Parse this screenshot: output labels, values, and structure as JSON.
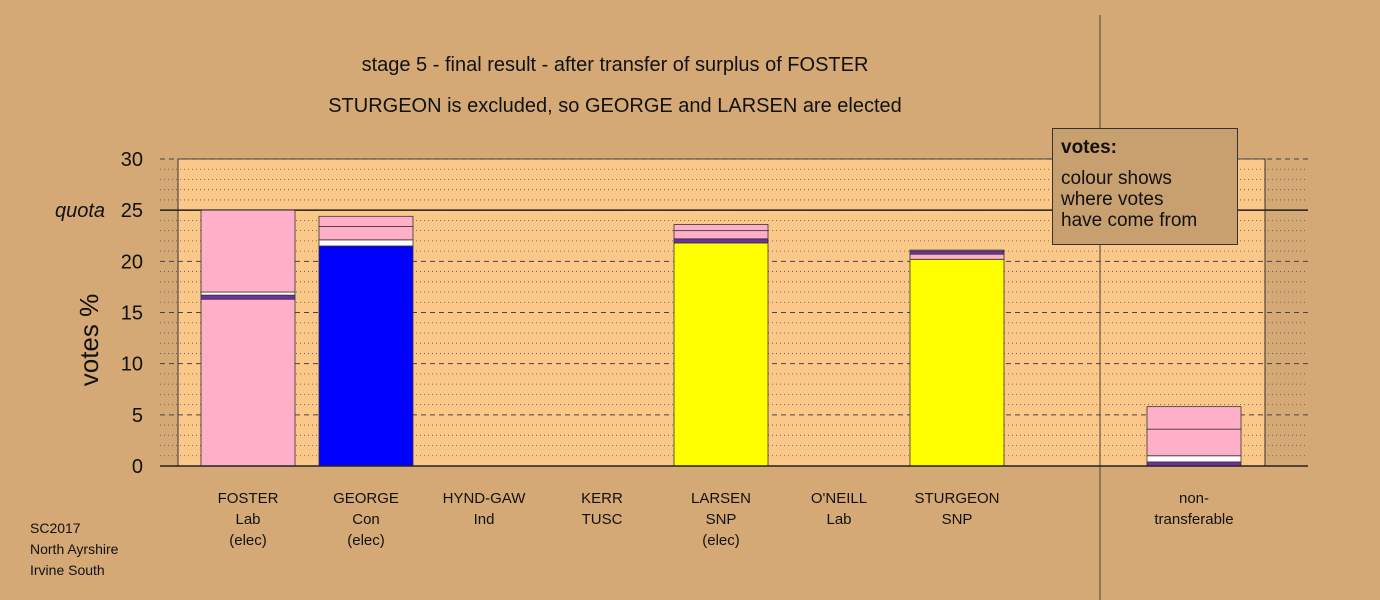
{
  "titles": {
    "line1": "stage 5 - final result - after transfer of surplus of FOSTER",
    "line2": "STURGEON is excluded, so GEORGE and LARSEN are elected"
  },
  "footer": [
    "SC2017",
    "North Ayrshire",
    "Irvine South"
  ],
  "legend": {
    "heading": "votes:",
    "lines": [
      "colour shows",
      "where votes",
      "have come from"
    ]
  },
  "colors": {
    "background": "#d4a976",
    "plot_area": "#fcc88a",
    "Lab": "#ffb0c8",
    "Con": "#0000ff",
    "SNP": "#ffff00",
    "Ind": "#7030a0",
    "TUSC": "#ffffff"
  },
  "chart_data": {
    "type": "bar",
    "stacked": true,
    "ylabel": "votes %",
    "ylim": [
      0,
      30
    ],
    "yticks": [
      0,
      5,
      10,
      15,
      20,
      25,
      30
    ],
    "quota": {
      "label": "quota",
      "value": 25
    },
    "categories": [
      {
        "name": "FOSTER",
        "party": "Lab",
        "status": "(elec)"
      },
      {
        "name": "GEORGE",
        "party": "Con",
        "status": "(elec)"
      },
      {
        "name": "HYND-GAW",
        "party": "Ind",
        "status": ""
      },
      {
        "name": "KERR",
        "party": "TUSC",
        "status": ""
      },
      {
        "name": "LARSEN",
        "party": "SNP",
        "status": "(elec)"
      },
      {
        "name": "O'NEILL",
        "party": "Lab",
        "status": ""
      },
      {
        "name": "STURGEON",
        "party": "SNP",
        "status": ""
      },
      {
        "name": "non-",
        "party": "transferable",
        "status": ""
      }
    ],
    "stacks": [
      [
        {
          "source": "Lab",
          "value": 16.3
        },
        {
          "source": "Ind",
          "value": 0.4
        },
        {
          "source": "TUSC",
          "value": 0.3
        },
        {
          "source": "Lab",
          "value": 8.0
        }
      ],
      [
        {
          "source": "Con",
          "value": 21.5
        },
        {
          "source": "TUSC",
          "value": 0.6
        },
        {
          "source": "Lab",
          "value": 1.3
        },
        {
          "source": "Lab",
          "value": 1.0
        }
      ],
      [],
      [],
      [
        {
          "source": "SNP",
          "value": 21.8
        },
        {
          "source": "Ind",
          "value": 0.4
        },
        {
          "source": "Lab",
          "value": 0.8
        },
        {
          "source": "Lab",
          "value": 0.6
        }
      ],
      [],
      [
        {
          "source": "SNP",
          "value": 20.2
        },
        {
          "source": "Lab",
          "value": 0.5
        },
        {
          "source": "Ind",
          "value": 0.3
        },
        {
          "source": "Lab",
          "value": 0.1
        }
      ],
      [
        {
          "source": "Ind",
          "value": 0.4
        },
        {
          "source": "TUSC",
          "value": 0.6
        },
        {
          "source": "Lab",
          "value": 2.6
        },
        {
          "source": "Lab",
          "value": 2.2
        }
      ]
    ]
  }
}
